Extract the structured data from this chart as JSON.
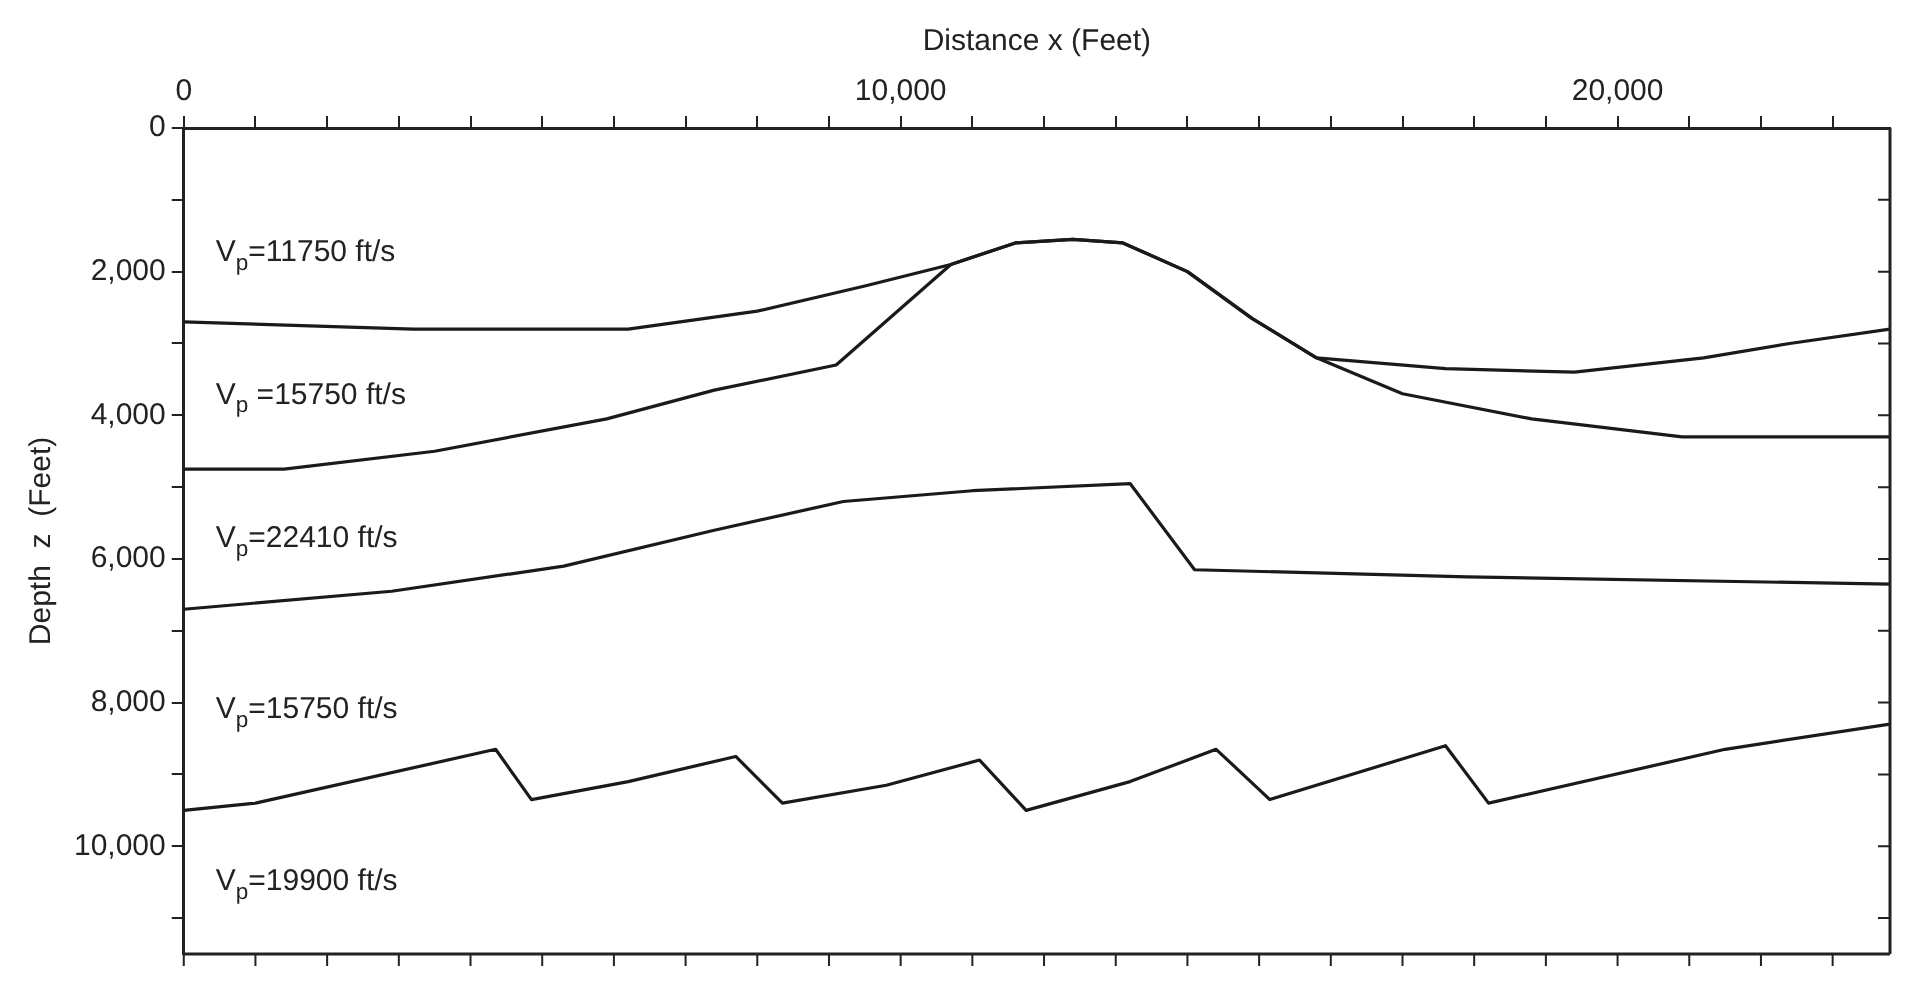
{
  "chart_data": {
    "type": "line",
    "xlabel": "Distance x (Feet)",
    "ylabel": "Depth  z  (Feet)",
    "xlim": [
      0,
      23800
    ],
    "ylim": [
      11500,
      0
    ],
    "xticks": [
      0,
      {
        "value": 1000,
        "label": null
      },
      {
        "value": 2000,
        "label": null
      },
      {
        "value": 3000,
        "label": null
      },
      {
        "value": 4000,
        "label": null
      },
      {
        "value": 5000,
        "label": null
      },
      {
        "value": 6000,
        "label": null
      },
      {
        "value": 7000,
        "label": null
      },
      {
        "value": 8000,
        "label": null
      },
      {
        "value": 9000,
        "label": null
      },
      {
        "value": 10000,
        "label": "10,000"
      },
      {
        "value": 11000,
        "label": null
      },
      {
        "value": 12000,
        "label": null
      },
      {
        "value": 13000,
        "label": null
      },
      {
        "value": 14000,
        "label": null
      },
      {
        "value": 15000,
        "label": null
      },
      {
        "value": 16000,
        "label": null
      },
      {
        "value": 17000,
        "label": null
      },
      {
        "value": 18000,
        "label": null
      },
      {
        "value": 19000,
        "label": null
      },
      {
        "value": 20000,
        "label": "20,000"
      },
      {
        "value": 21000,
        "label": null
      },
      {
        "value": 22000,
        "label": null
      },
      {
        "value": 23000,
        "label": null
      }
    ],
    "yticks": [
      0,
      {
        "value": 1000,
        "label": null
      },
      {
        "value": 2000,
        "label": "2,000"
      },
      {
        "value": 3000,
        "label": null
      },
      {
        "value": 4000,
        "label": "4,000"
      },
      {
        "value": 5000,
        "label": null
      },
      {
        "value": 6000,
        "label": "6,000"
      },
      {
        "value": 7000,
        "label": null
      },
      {
        "value": 8000,
        "label": "8,000"
      },
      {
        "value": 9000,
        "label": null
      },
      {
        "value": 10000,
        "label": "10,000"
      },
      {
        "value": 11000,
        "label": null
      }
    ],
    "grid": false,
    "legend": false,
    "marker": "none",
    "line_style": "solid",
    "series": [
      {
        "color": "#1a1a1a",
        "x": [
          0,
          3200,
          6200,
          8000,
          9500,
          10700,
          11600,
          12400,
          13100,
          14000,
          14900,
          15800,
          17600,
          19400,
          21200,
          22400,
          23800
        ],
        "values": [
          2700,
          2800,
          2800,
          2550,
          2200,
          1900,
          1600,
          1550,
          1600,
          2000,
          2650,
          3200,
          3350,
          3400,
          3200,
          3000,
          2800
        ]
      },
      {
        "color": "#1a1a1a",
        "x": [
          0,
          1400,
          3500,
          5900,
          7400,
          9100,
          10700,
          11600,
          12400,
          13100,
          14000,
          14900,
          15800,
          17000,
          18800,
          20900,
          23800
        ],
        "values": [
          4750,
          4750,
          4500,
          4050,
          3650,
          3300,
          1900,
          1600,
          1550,
          1600,
          2000,
          2650,
          3200,
          3700,
          4050,
          4300,
          4300
        ]
      },
      {
        "color": "#1a1a1a",
        "x": [
          0,
          2900,
          5300,
          7400,
          9200,
          11000,
          13200,
          14100,
          17900,
          23800
        ],
        "values": [
          6700,
          6450,
          6100,
          5600,
          5200,
          5050,
          4950,
          6150,
          6250,
          6350
        ]
      },
      {
        "color": "#1a1a1a",
        "x": [
          0,
          1000,
          4350,
          4850,
          6200,
          7700,
          8350,
          9800,
          11100,
          11750,
          13200,
          14400,
          15150,
          17600,
          18200,
          21500,
          23800
        ],
        "values": [
          9500,
          9400,
          8650,
          9350,
          9100,
          8750,
          9400,
          9150,
          8800,
          9500,
          9100,
          8650,
          9350,
          8600,
          9400,
          8650,
          8300
        ]
      }
    ],
    "annotations": [
      "V$_{p}$=11750 ft/s",
      "V$_{p}$ =15750 ft/s",
      "V$_{p}$=22410 ft/s",
      "V$_{p}$=15750 ft/s",
      "V$_{p}$=19900 ft/s"
    ]
  }
}
